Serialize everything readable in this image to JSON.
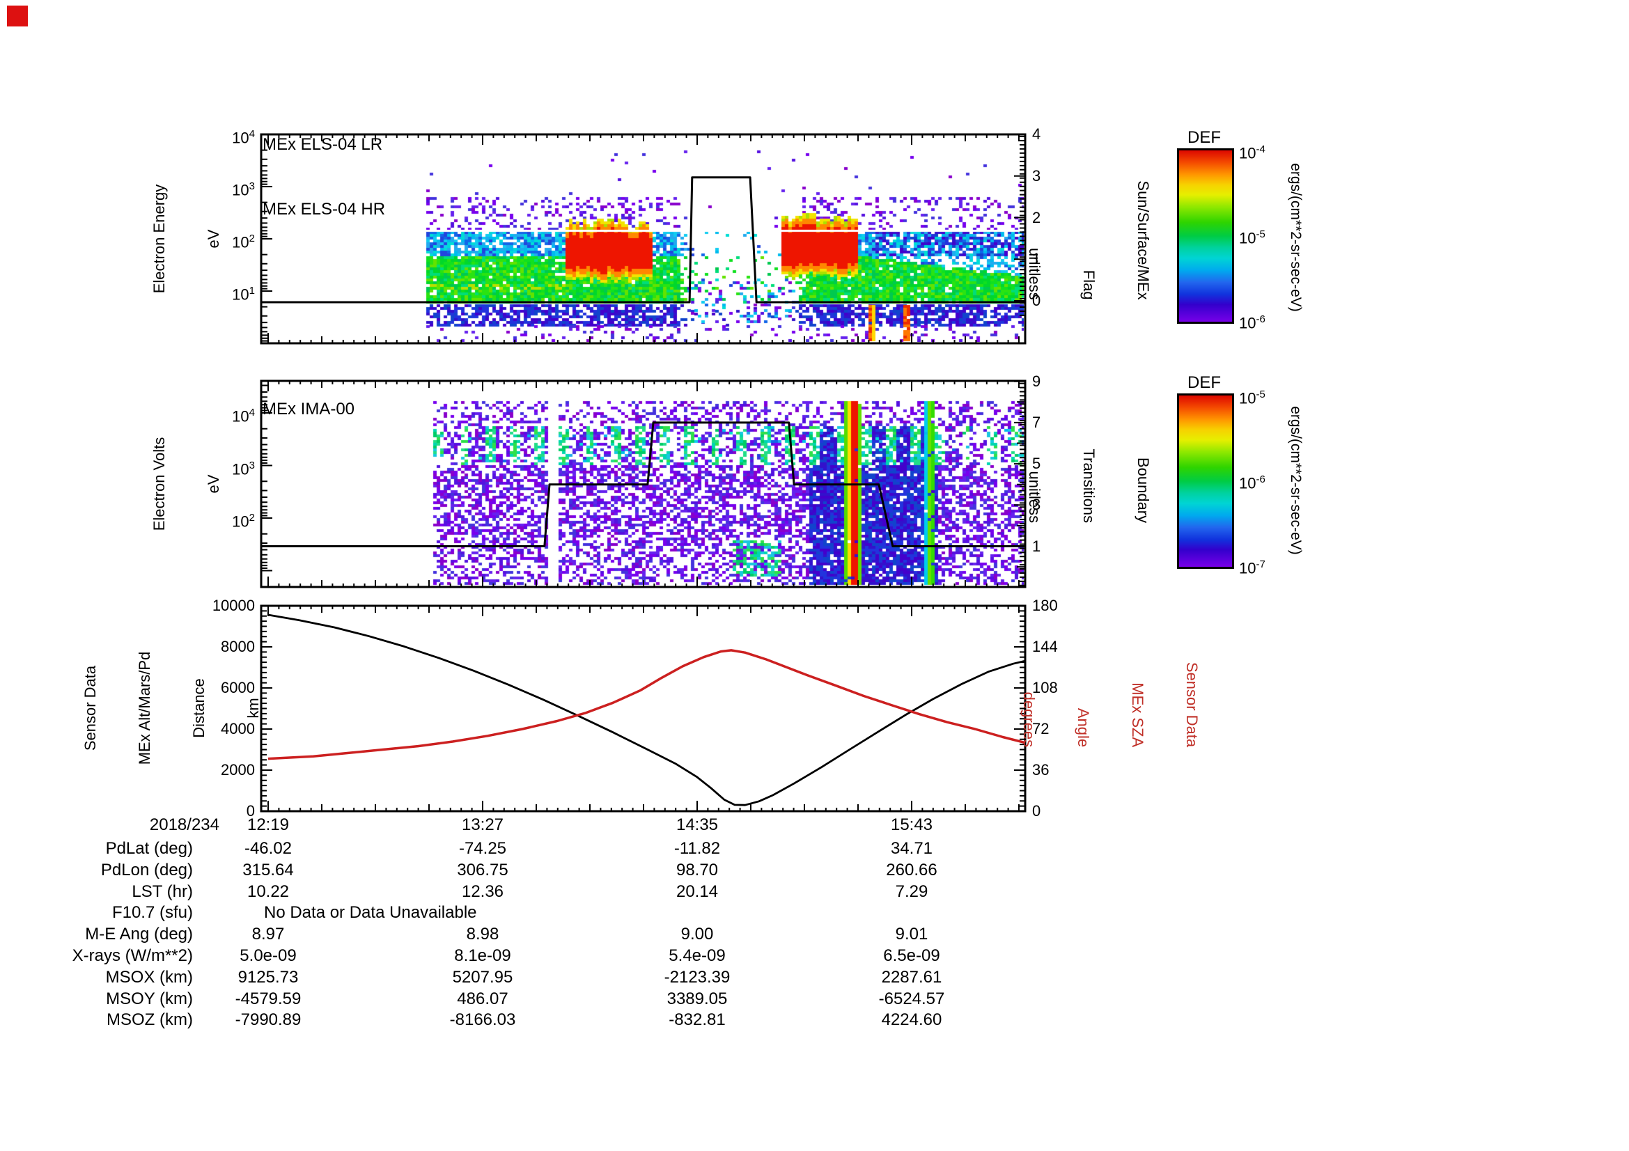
{
  "corner_marker": {
    "color": "#dd1111"
  },
  "panel_els": {
    "titles": [
      "MEx ELS-04 LR",
      "MEx ELS-04 HR"
    ],
    "ylabel_lines": [
      "Electron Energy",
      "eV"
    ],
    "ytick_exponents": [
      4,
      3,
      2,
      1
    ],
    "right_label_lines": [
      "Sensor Data",
      "Sun/Surface/MEx",
      "Flag",
      "unitless"
    ],
    "right_ticks": [
      4,
      3,
      2,
      1,
      0
    ]
  },
  "panel_ima": {
    "title": "MEx IMA-00",
    "ylabel_lines": [
      "Electron Volts",
      "eV"
    ],
    "ytick_exponents": [
      4,
      3,
      2
    ],
    "right_label_lines": [
      "Sensor Data",
      "Boundary",
      "Transitions",
      "unitless"
    ],
    "right_ticks": [
      9,
      7,
      5,
      3,
      1
    ]
  },
  "panel_traj": {
    "ylabel_lines": [
      "Sensor Data",
      "MEx Alt/Mars/Pd",
      "Distance",
      "km"
    ],
    "yticks": [
      10000,
      8000,
      6000,
      4000,
      2000,
      0
    ],
    "right_label_lines": [
      "Sensor Data",
      "MEx SZA",
      "Angle",
      "degrees"
    ],
    "right_ticks": [
      180,
      144,
      108,
      72,
      36,
      0
    ],
    "alt_color": "#000000",
    "sza_color": "#cc2020",
    "label_color": "#c03028"
  },
  "xaxis": {
    "date": "2018/234",
    "labels": [
      "12:19",
      "13:27",
      "14:35",
      "15:43"
    ]
  },
  "colorbars": [
    {
      "title": "DEF",
      "tick_labels": [
        "10^-4",
        "10^-5",
        "10^-6"
      ],
      "unit": "ergs/(cm**2-sr-sec-eV)"
    },
    {
      "title": "DEF",
      "tick_labels": [
        "10^-5",
        "10^-6",
        "10^-7"
      ],
      "unit": "ergs/(cm**2-sr-sec-eV)"
    }
  ],
  "table": {
    "no_data_text": "No Data or Data Unavailable",
    "rows": [
      {
        "label": "PdLat (deg)",
        "values": [
          "-46.02",
          "-74.25",
          "-11.82",
          "34.71"
        ]
      },
      {
        "label": "PdLon (deg)",
        "values": [
          "315.64",
          "306.75",
          "98.70",
          "260.66"
        ]
      },
      {
        "label": "LST (hr)",
        "values": [
          "10.22",
          "12.36",
          "20.14",
          "7.29"
        ]
      },
      {
        "label": "F10.7 (sfu)",
        "values": [],
        "note": "No Data or Data Unavailable"
      },
      {
        "label": "M-E Ang (deg)",
        "values": [
          "8.97",
          "8.98",
          "9.00",
          "9.01"
        ]
      },
      {
        "label": "X-rays (W/m**2)",
        "values": [
          "5.0e-09",
          "8.1e-09",
          "5.4e-09",
          "6.5e-09"
        ]
      },
      {
        "label": "MSOX (km)",
        "values": [
          "9125.73",
          "5207.95",
          "-2123.39",
          "2287.61"
        ]
      },
      {
        "label": "MSOY (km)",
        "values": [
          "-4579.59",
          "486.07",
          "3389.05",
          "-6524.57"
        ]
      },
      {
        "label": "MSOZ (km)",
        "values": [
          "-7990.89",
          "-8166.03",
          "-832.81",
          "4224.60"
        ]
      }
    ]
  },
  "chart_data": [
    {
      "type": "heatmap",
      "title": "MEx ELS-04 LR / MEx ELS-04 HR",
      "ylabel": "Electron Energy (eV)",
      "yscale": "log",
      "yrange": [
        1,
        10000
      ],
      "x_start": "2018/234 12:19",
      "x_end": "2018/234 16:19",
      "x_tick_labels": [
        "12:19",
        "13:27",
        "14:35",
        "15:43"
      ],
      "colorbar": {
        "title": "DEF",
        "unit": "ergs/(cm**2-sr-sec-eV)",
        "range": [
          1e-06,
          0.0001
        ]
      },
      "coverage_note": "no data before ~13:06; sparse dropout ~14:33-15:06",
      "features": [
        "broad 5-300 eV electron flux band",
        "intense red 30-200 eV flux 13:50-14:20 and 15:05-15:30",
        "narrow warm streaks below 3 eV near 15:28 and 15:40"
      ],
      "overlay": {
        "name": "Sun/Surface/MEx Flag",
        "range": [
          0,
          4
        ],
        "points_min_val": [
          [
            -2.2,
            0
          ],
          [
            133.6,
            0
          ],
          [
            134.4,
            3
          ],
          [
            152.8,
            3
          ],
          [
            154.8,
            0
          ],
          [
            240,
            0
          ]
        ]
      }
    },
    {
      "type": "heatmap",
      "title": "MEx IMA-00",
      "ylabel": "Electron Volts (eV)",
      "yscale": "log",
      "yrange": [
        5,
        40000
      ],
      "colorbar": {
        "title": "DEF",
        "unit": "ergs/(cm**2-sr-sec-eV)",
        "range": [
          1e-07,
          1e-05
        ]
      },
      "coverage_note": "no data before ~13:08; gap column ~13:47",
      "features": [
        "purple/blue noise background",
        "striped cyan-green band near 1-5 keV",
        "saturated red vertical streak ~15:23",
        "green vertical streak ~15:48"
      ],
      "overlay": {
        "name": "Boundary Transitions",
        "range": [
          0,
          9
        ],
        "points_min_val": [
          [
            -2.2,
            1
          ],
          [
            87.6,
            1
          ],
          [
            89.2,
            4
          ],
          [
            120.3,
            4
          ],
          [
            122.1,
            7
          ],
          [
            165.1,
            7
          ],
          [
            166.7,
            4
          ],
          [
            193.6,
            4
          ],
          [
            198.0,
            1
          ],
          [
            240,
            1
          ]
        ]
      }
    },
    {
      "type": "line",
      "x_unit": "minutes after 2018/234 12:19",
      "series": [
        {
          "name": "MEx Alt/Mars/Pd Distance",
          "unit": "km",
          "axis_range": [
            0,
            10000
          ],
          "color": "#000000",
          "points": [
            [
              0,
              9560
            ],
            [
              9.9,
              9300
            ],
            [
              21.0,
              8950
            ],
            [
              32.0,
              8520
            ],
            [
              43.1,
              8020
            ],
            [
              54.1,
              7460
            ],
            [
              65.1,
              6840
            ],
            [
              76.2,
              6160
            ],
            [
              87.2,
              5430
            ],
            [
              98.2,
              4650
            ],
            [
              109.3,
              3840
            ],
            [
              120.3,
              3000
            ],
            [
              129.1,
              2320
            ],
            [
              135.8,
              1680
            ],
            [
              140.2,
              1150
            ],
            [
              144.6,
              560
            ],
            [
              147.9,
              310
            ],
            [
              151.2,
              300
            ],
            [
              155.6,
              480
            ],
            [
              160.0,
              780
            ],
            [
              166.7,
              1350
            ],
            [
              175.5,
              2150
            ],
            [
              184.3,
              3000
            ],
            [
              193.2,
              3850
            ],
            [
              202.0,
              4680
            ],
            [
              210.8,
              5460
            ],
            [
              219.7,
              6180
            ],
            [
              228.5,
              6800
            ],
            [
              236.2,
              7180
            ],
            [
              240.0,
              7320
            ]
          ]
        },
        {
          "name": "MEx SZA Angle",
          "unit": "degrees",
          "axis_range": [
            0,
            180
          ],
          "color": "#cc2020",
          "points": [
            [
              0,
              46
            ],
            [
              14.3,
              48
            ],
            [
              25.4,
              51
            ],
            [
              36.4,
              54
            ],
            [
              47.5,
              57
            ],
            [
              58.5,
              61
            ],
            [
              69.6,
              66
            ],
            [
              80.6,
              72
            ],
            [
              91.6,
              79
            ],
            [
              100.5,
              86
            ],
            [
              109.3,
              95
            ],
            [
              118.1,
              106
            ],
            [
              124.8,
              117
            ],
            [
              131.4,
              127
            ],
            [
              138.0,
              135
            ],
            [
              143.5,
              140
            ],
            [
              146.8,
              141
            ],
            [
              151.2,
              139
            ],
            [
              157.9,
              133
            ],
            [
              164.5,
              126
            ],
            [
              171.1,
              119
            ],
            [
              180.0,
              110
            ],
            [
              188.8,
              101
            ],
            [
              197.6,
              93
            ],
            [
              206.5,
              85
            ],
            [
              215.3,
              78
            ],
            [
              224.1,
              72
            ],
            [
              232.9,
              65
            ],
            [
              240.0,
              60
            ]
          ]
        }
      ]
    }
  ]
}
